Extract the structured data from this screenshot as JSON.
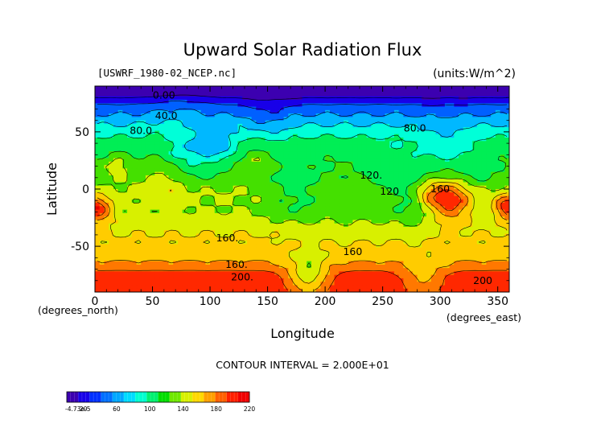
{
  "chart_data": {
    "type": "heatmap",
    "title": "Upward Solar Radiation Flux",
    "subtitle_left": "[USWRF_1980-02_NCEP.nc]",
    "subtitle_right": "(units:W/m^2)",
    "xlabel": "Longitude",
    "ylabel": "Latitude",
    "x_unit_label": "(degrees_east)",
    "y_unit_label": "(degrees_north)",
    "xlim": [
      0,
      360
    ],
    "ylim": [
      -90,
      90
    ],
    "x_ticks": [
      0,
      50,
      100,
      150,
      200,
      250,
      300,
      350
    ],
    "y_ticks": [
      50,
      0,
      -50
    ],
    "contour_interval_text": "CONTOUR INTERVAL = 2.000E+01",
    "contour_labels": [
      {
        "text": "0.00",
        "lon": 60,
        "lat": 82
      },
      {
        "text": "40.0",
        "lon": 62,
        "lat": 64
      },
      {
        "text": "80.0",
        "lon": 40,
        "lat": 51
      },
      {
        "text": "80.0",
        "lon": 278,
        "lat": 53
      },
      {
        "text": "120.",
        "lon": 240,
        "lat": 12
      },
      {
        "text": "120",
        "lon": 256,
        "lat": -2
      },
      {
        "text": "160",
        "lon": 300,
        "lat": 0
      },
      {
        "text": "160.",
        "lon": 115,
        "lat": -43
      },
      {
        "text": "160",
        "lon": 224,
        "lat": -55
      },
      {
        "text": "160.",
        "lon": 123,
        "lat": -66
      },
      {
        "text": "200.",
        "lon": 128,
        "lat": -77
      },
      {
        "text": "200",
        "lon": 337,
        "lat": -80
      }
    ],
    "colorbar": {
      "labels": [
        "-4.73e-5",
        "20",
        "60",
        "100",
        "140",
        "180",
        "220"
      ],
      "range": [
        0,
        220
      ],
      "colors": [
        "#3c00b0",
        "#1800e8",
        "#0030ff",
        "#0070ff",
        "#00a8ff",
        "#00dcff",
        "#00ffd0",
        "#00f070",
        "#00dd00",
        "#70e800",
        "#d8f000",
        "#ffd800",
        "#ffa000",
        "#ff6000",
        "#ff2000",
        "#f00000"
      ]
    },
    "color_scale": [
      {
        "value": 0,
        "color": "#3c00b0"
      },
      {
        "value": 20,
        "color": "#1800e8"
      },
      {
        "value": 40,
        "color": "#0060ff"
      },
      {
        "value": 60,
        "color": "#00b8ff"
      },
      {
        "value": 80,
        "color": "#00ffd8"
      },
      {
        "value": 100,
        "color": "#00ee55"
      },
      {
        "value": 120,
        "color": "#44e000"
      },
      {
        "value": 140,
        "color": "#d8f000"
      },
      {
        "value": 160,
        "color": "#ffcc00"
      },
      {
        "value": 180,
        "color": "#ff7800"
      },
      {
        "value": 200,
        "color": "#ff2800"
      },
      {
        "value": 220,
        "color": "#e80000"
      }
    ],
    "lat_profile": [
      {
        "lat": 90,
        "value": 5
      },
      {
        "lat": 82,
        "value": 12
      },
      {
        "lat": 74,
        "value": 40
      },
      {
        "lat": 66,
        "value": 58
      },
      {
        "lat": 58,
        "value": 76
      },
      {
        "lat": 50,
        "value": 92
      },
      {
        "lat": 42,
        "value": 106
      },
      {
        "lat": 34,
        "value": 110
      },
      {
        "lat": 26,
        "value": 120
      },
      {
        "lat": 18,
        "value": 124
      },
      {
        "lat": 10,
        "value": 128
      },
      {
        "lat": 2,
        "value": 138
      },
      {
        "lat": -6,
        "value": 142
      },
      {
        "lat": -14,
        "value": 140
      },
      {
        "lat": -22,
        "value": 142
      },
      {
        "lat": -30,
        "value": 150
      },
      {
        "lat": -38,
        "value": 158
      },
      {
        "lat": -46,
        "value": 164
      },
      {
        "lat": -54,
        "value": 170
      },
      {
        "lat": -62,
        "value": 178
      },
      {
        "lat": -70,
        "value": 198
      },
      {
        "lat": -78,
        "value": 212
      },
      {
        "lat": -86,
        "value": 214
      },
      {
        "lat": -90,
        "value": 214
      }
    ],
    "features": [
      {
        "lon": 310,
        "lat": -10,
        "radius": 18,
        "delta": 70
      },
      {
        "lon": 292,
        "lat": -5,
        "radius": 14,
        "delta": 40
      },
      {
        "lon": 275,
        "lat": -10,
        "radius": 25,
        "delta": -25
      },
      {
        "lon": 5,
        "lat": -18,
        "radius": 12,
        "delta": 55
      },
      {
        "lon": 355,
        "lat": -15,
        "radius": 10,
        "delta": 45
      },
      {
        "lon": 85,
        "lat": 35,
        "radius": 22,
        "delta": -35
      },
      {
        "lon": 110,
        "lat": 38,
        "radius": 15,
        "delta": -30
      },
      {
        "lon": 175,
        "lat": -5,
        "radius": 25,
        "delta": -25
      },
      {
        "lon": 250,
        "lat": 15,
        "radius": 20,
        "delta": -15
      },
      {
        "lon": 300,
        "lat": 35,
        "radius": 25,
        "delta": -20
      },
      {
        "lon": 140,
        "lat": 25,
        "radius": 15,
        "delta": 20
      },
      {
        "lon": 60,
        "lat": 5,
        "radius": 20,
        "delta": 20
      },
      {
        "lon": 20,
        "lat": 20,
        "radius": 12,
        "delta": 25
      },
      {
        "lon": 185,
        "lat": -76,
        "radius": 18,
        "delta": -60
      },
      {
        "lon": 285,
        "lat": -78,
        "radius": 18,
        "delta": -35
      },
      {
        "lon": 75,
        "lat": 62,
        "radius": 25,
        "delta": 15
      },
      {
        "lon": 150,
        "lat": 60,
        "radius": 20,
        "delta": -15
      },
      {
        "lon": 225,
        "lat": -25,
        "radius": 25,
        "delta": -10
      },
      {
        "lon": 330,
        "lat": 15,
        "radius": 18,
        "delta": -15
      }
    ]
  }
}
